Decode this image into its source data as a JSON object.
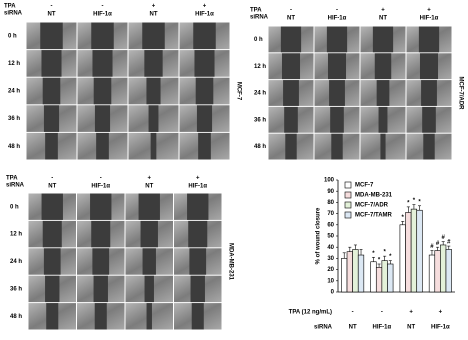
{
  "panels": [
    {
      "label": "MCF-7",
      "tpa_title": "TPA",
      "sirna_title": "siRNA",
      "tpa": [
        "-",
        "-",
        "+",
        "+"
      ],
      "sirna": [
        "NT",
        "HIF-1α",
        "NT",
        "HIF-1α"
      ],
      "rows": [
        "0 h",
        "12 h",
        "24 h",
        "36 h",
        "48 h"
      ]
    },
    {
      "label": "MCF-7/ADR",
      "tpa_title": "TPA",
      "sirna_title": "siRNA",
      "tpa": [
        "-",
        "-",
        "+",
        "+"
      ],
      "sirna": [
        "NT",
        "HIF-1α",
        "NT",
        "HIF-1α"
      ],
      "rows": [
        "0 h",
        "12 h",
        "24 h",
        "36 h",
        "48 h"
      ]
    },
    {
      "label": "MDA-MB-231",
      "tpa_title": "TPA",
      "sirna_title": "siRNA",
      "tpa": [
        "-",
        "-",
        "+",
        "+"
      ],
      "sirna": [
        "NT",
        "HIF-1α",
        "NT",
        "HIF-1α"
      ],
      "rows": [
        "0 h",
        "12 h",
        "24 h",
        "36 h",
        "48 h"
      ]
    }
  ],
  "chart_data": {
    "type": "bar",
    "y_label": "% of wound closure",
    "tpa_label": "TPA (12 ng/mL)",
    "sirna_label": "siRNA",
    "tpa": [
      "-",
      "-",
      "+",
      "+"
    ],
    "categories": [
      "NT",
      "HIF-1α",
      "NT",
      "HIF-1α"
    ],
    "series": [
      {
        "name": "MCF-7",
        "color": "#ffffff",
        "values": [
          30,
          27,
          60,
          33
        ],
        "errors": [
          5,
          4,
          3,
          4
        ],
        "marks": [
          null,
          "*",
          "*",
          "#"
        ]
      },
      {
        "name": "MDA-MB-231",
        "color": "#f6dede",
        "values": [
          36,
          22,
          71,
          37
        ],
        "errors": [
          4,
          3,
          5,
          3
        ],
        "marks": [
          null,
          "*",
          "*",
          "#"
        ]
      },
      {
        "name": "MCF-7/ADR",
        "color": "#e3f1d9",
        "values": [
          38,
          28,
          74,
          42
        ],
        "errors": [
          4,
          4,
          4,
          3
        ],
        "marks": [
          null,
          "*",
          "*",
          "#"
        ]
      },
      {
        "name": "MCF-7/TAMR",
        "color": "#dce8f4",
        "values": [
          33,
          25,
          73,
          38
        ],
        "errors": [
          5,
          3,
          4,
          3
        ],
        "marks": [
          null,
          "*",
          "*",
          "#"
        ]
      }
    ],
    "ylim": [
      0,
      100
    ],
    "yticks": [
      0,
      10,
      20,
      30,
      40,
      50,
      60,
      70,
      80,
      90,
      100
    ]
  }
}
